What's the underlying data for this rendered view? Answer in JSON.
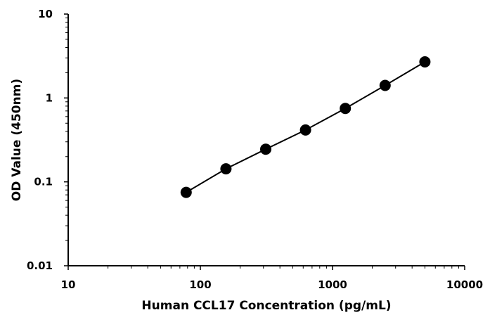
{
  "chart_data": {
    "type": "line",
    "title": "",
    "xlabel": "Human CCL17 Concentration (pg/mL)",
    "ylabel": "OD Value (450nm)",
    "x_scale": "log",
    "y_scale": "log",
    "xlim": [
      10,
      10000
    ],
    "ylim": [
      0.01,
      10
    ],
    "x_ticks": [
      "10",
      "100",
      "1000",
      "10000"
    ],
    "y_ticks": [
      "0.01",
      "0.1",
      "1",
      "10"
    ],
    "grid": false,
    "legend": "none",
    "series": [
      {
        "x": [
          78.125,
          156.25,
          312.5,
          625,
          1250,
          2500,
          5000
        ],
        "y": [
          0.075,
          0.143,
          0.245,
          0.415,
          0.75,
          1.41,
          2.69
        ],
        "color": "#000000",
        "marker": "circle"
      }
    ]
  }
}
